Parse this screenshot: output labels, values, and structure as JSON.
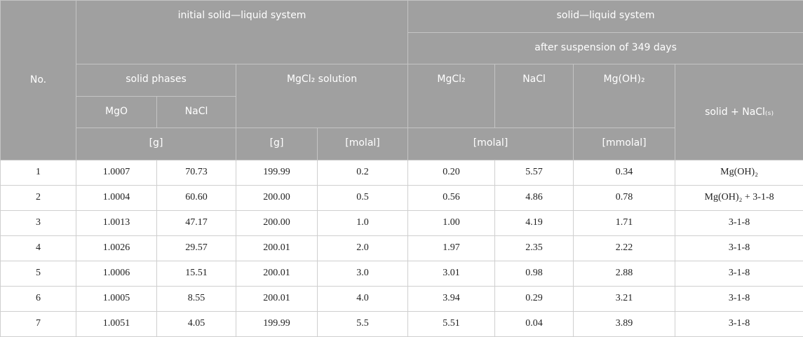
{
  "header": {
    "no": "No.",
    "initial": "initial solid—liquid system",
    "system": "solid—liquid system",
    "after": "after suspension of 349 days",
    "solid_phases": "solid phases",
    "mgcl2_solution": "MgCl₂ solution",
    "mgo": "MgO",
    "nacl_solid": "NaCl",
    "mgcl2": "MgCl₂",
    "nacl": "NaCl",
    "mgoh2": "Mg(OH)₂",
    "solid": "solid + NaCl₍ₛ₎",
    "unit_g_solid": "[g]",
    "unit_g_solution": "[g]",
    "unit_molal_solution": "[molal]",
    "unit_molal_after": "[molal]",
    "unit_mmolal": "[mmolal]"
  },
  "rows": [
    [
      "1",
      "1.0007",
      "70.73",
      "199.99",
      "0.2",
      "0.20",
      "5.57",
      "0.34",
      "Mg(OH)₂"
    ],
    [
      "2",
      "1.0004",
      "60.60",
      "200.00",
      "0.5",
      "0.56",
      "4.86",
      "0.78",
      "Mg(OH)₂ + 3-1-8"
    ],
    [
      "3",
      "1.0013",
      "47.17",
      "200.00",
      "1.0",
      "1.00",
      "4.19",
      "1.71",
      "3-1-8"
    ],
    [
      "4",
      "1.0026",
      "29.57",
      "200.01",
      "2.0",
      "1.97",
      "2.35",
      "2.22",
      "3-1-8"
    ],
    [
      "5",
      "1.0006",
      "15.51",
      "200.01",
      "3.0",
      "3.01",
      "0.98",
      "2.88",
      "3-1-8"
    ],
    [
      "6",
      "1.0005",
      "8.55",
      "200.01",
      "4.0",
      "3.94",
      "0.29",
      "3.21",
      "3-1-8"
    ],
    [
      "7",
      "1.0051",
      "4.05",
      "199.99",
      "5.5",
      "5.51",
      "0.04",
      "3.89",
      "3-1-8"
    ]
  ]
}
